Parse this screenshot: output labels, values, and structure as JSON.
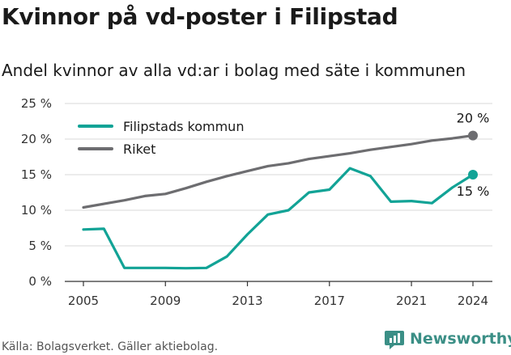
{
  "header": {
    "title": "Kvinnor på vd-poster i Filipstad",
    "subtitle": "Andel kvinnor av alla vd:ar i bolag med säte i kommunen"
  },
  "footer": {
    "source": "Källa: Bolagsverket. Gäller aktiebolag.",
    "brand": "Newsworthy"
  },
  "colors": {
    "filipstad": "#12a396",
    "riket": "#6d6d70",
    "grid": "#d9d9d9",
    "axis": "#333333"
  },
  "chart_data": {
    "type": "line",
    "x": [
      2005,
      2006,
      2007,
      2008,
      2009,
      2010,
      2011,
      2012,
      2013,
      2014,
      2015,
      2016,
      2017,
      2018,
      2019,
      2020,
      2021,
      2022,
      2023,
      2024
    ],
    "series": [
      {
        "name": "Filipstads kommun",
        "values": [
          7.3,
          7.4,
          1.9,
          1.9,
          1.9,
          1.85,
          1.9,
          3.5,
          6.6,
          9.4,
          10.0,
          12.5,
          12.9,
          15.9,
          14.8,
          11.2,
          11.3,
          11.0,
          13.2,
          15.0
        ]
      },
      {
        "name": "Riket",
        "values": [
          10.4,
          10.9,
          11.4,
          12.0,
          12.3,
          13.1,
          14.0,
          14.8,
          15.5,
          16.2,
          16.6,
          17.2,
          17.6,
          18.0,
          18.5,
          18.9,
          19.3,
          19.8,
          20.1,
          20.5
        ]
      }
    ],
    "xticks": [
      2005,
      2009,
      2013,
      2017,
      2021,
      2024
    ],
    "yticks": [
      0,
      5,
      10,
      15,
      20,
      25
    ],
    "ytick_labels": [
      "0 %",
      "5 %",
      "10 %",
      "15 %",
      "20 %",
      "25 %"
    ],
    "ylim": [
      0,
      25
    ],
    "xlim": [
      2005,
      2024
    ],
    "end_labels": [
      "15 %",
      "20 %"
    ],
    "legend_position": "top-left",
    "grid": true
  }
}
